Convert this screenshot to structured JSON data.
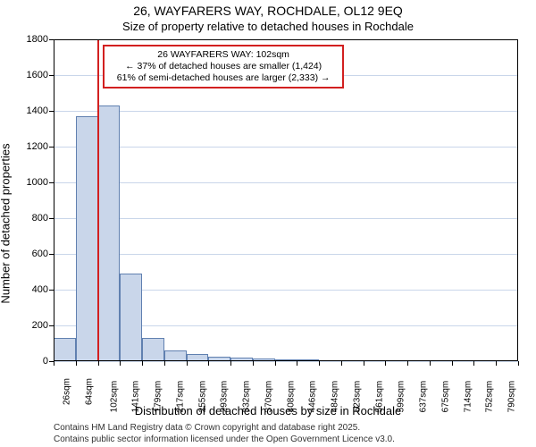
{
  "title": "26, WAYFARERS WAY, ROCHDALE, OL12 9EQ",
  "subtitle": "Size of property relative to detached houses in Rochdale",
  "ylabel": "Number of detached properties",
  "xlabel": "Distribution of detached houses by size in Rochdale",
  "footer_line1": "Contains HM Land Registry data © Crown copyright and database right 2025.",
  "footer_line2": "Contains public sector information licensed under the Open Government Licence v3.0.",
  "chart": {
    "type": "bar",
    "background_color": "#ffffff",
    "grid_color": "#c9d6ea",
    "bar_fill": "#c9d6ea",
    "bar_stroke": "#6080b0",
    "axis_color": "#000000",
    "marker_color": "#d22020",
    "marker_x": 102,
    "bar_width_ratio": 1.0,
    "x_start": 26,
    "x_step": 38.3,
    "categories": [
      "26sqm",
      "64sqm",
      "102sqm",
      "141sqm",
      "179sqm",
      "217sqm",
      "255sqm",
      "293sqm",
      "332sqm",
      "370sqm",
      "408sqm",
      "446sqm",
      "484sqm",
      "523sqm",
      "561sqm",
      "599sqm",
      "637sqm",
      "675sqm",
      "714sqm",
      "752sqm",
      "790sqm"
    ],
    "values": [
      130,
      1370,
      1430,
      490,
      130,
      60,
      40,
      25,
      20,
      15,
      12,
      10,
      4,
      3,
      2,
      2,
      1,
      1,
      1,
      1,
      0
    ],
    "ylim": [
      0,
      1800
    ],
    "ytick_step": 200
  },
  "annotation": {
    "border_color": "#d22020",
    "title": "26 WAYFARERS WAY: 102sqm",
    "line1": "← 37% of detached houses are smaller (1,424)",
    "line2": "61% of semi-detached houses are larger (2,333) →"
  }
}
